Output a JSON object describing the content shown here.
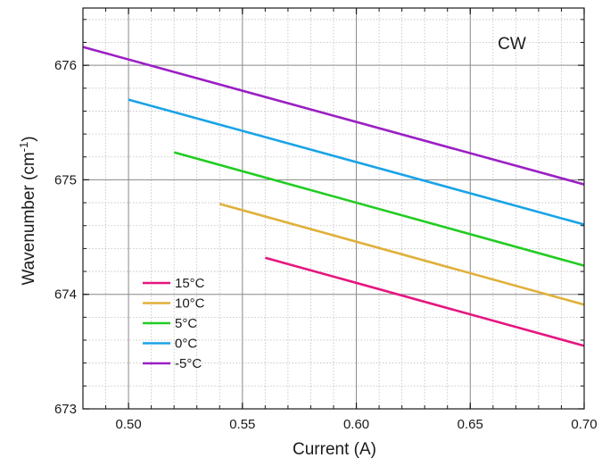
{
  "chart_data": {
    "type": "line",
    "xlabel": "Current (A)",
    "ylabel_main": "Wavenumber (cm",
    "ylabel_sup": "-1",
    "ylabel_tail": ")",
    "xlim": [
      0.48,
      0.7
    ],
    "ylim": [
      673,
      676.5
    ],
    "xticks": [
      0.5,
      0.55,
      0.6,
      0.65,
      0.7
    ],
    "xtick_labels": [
      "0.50",
      "0.55",
      "0.60",
      "0.65",
      "0.70"
    ],
    "yticks": [
      673,
      674,
      675,
      676
    ],
    "ytick_labels": [
      "673",
      "674",
      "675",
      "676"
    ],
    "x_minor_step": 0.01,
    "y_minor_step": 0.2,
    "grid": true,
    "legend_position": "bottom-left",
    "annotation": "CW",
    "series": [
      {
        "name": "15°C",
        "color": "#e6157f",
        "x": [
          0.56,
          0.7
        ],
        "y": [
          674.32,
          673.55
        ]
      },
      {
        "name": "10°C",
        "color": "#e0b03a",
        "x": [
          0.54,
          0.7
        ],
        "y": [
          674.79,
          673.91
        ]
      },
      {
        "name": "5°C",
        "color": "#22cc22",
        "x": [
          0.52,
          0.7
        ],
        "y": [
          675.24,
          674.25
        ]
      },
      {
        "name": "0°C",
        "color": "#1aa3e6",
        "x": [
          0.5,
          0.7
        ],
        "y": [
          675.7,
          674.61
        ]
      },
      {
        "name": "-5°C",
        "color": "#9b1fc4",
        "x": [
          0.48,
          0.7
        ],
        "y": [
          676.16,
          674.96
        ]
      }
    ]
  }
}
